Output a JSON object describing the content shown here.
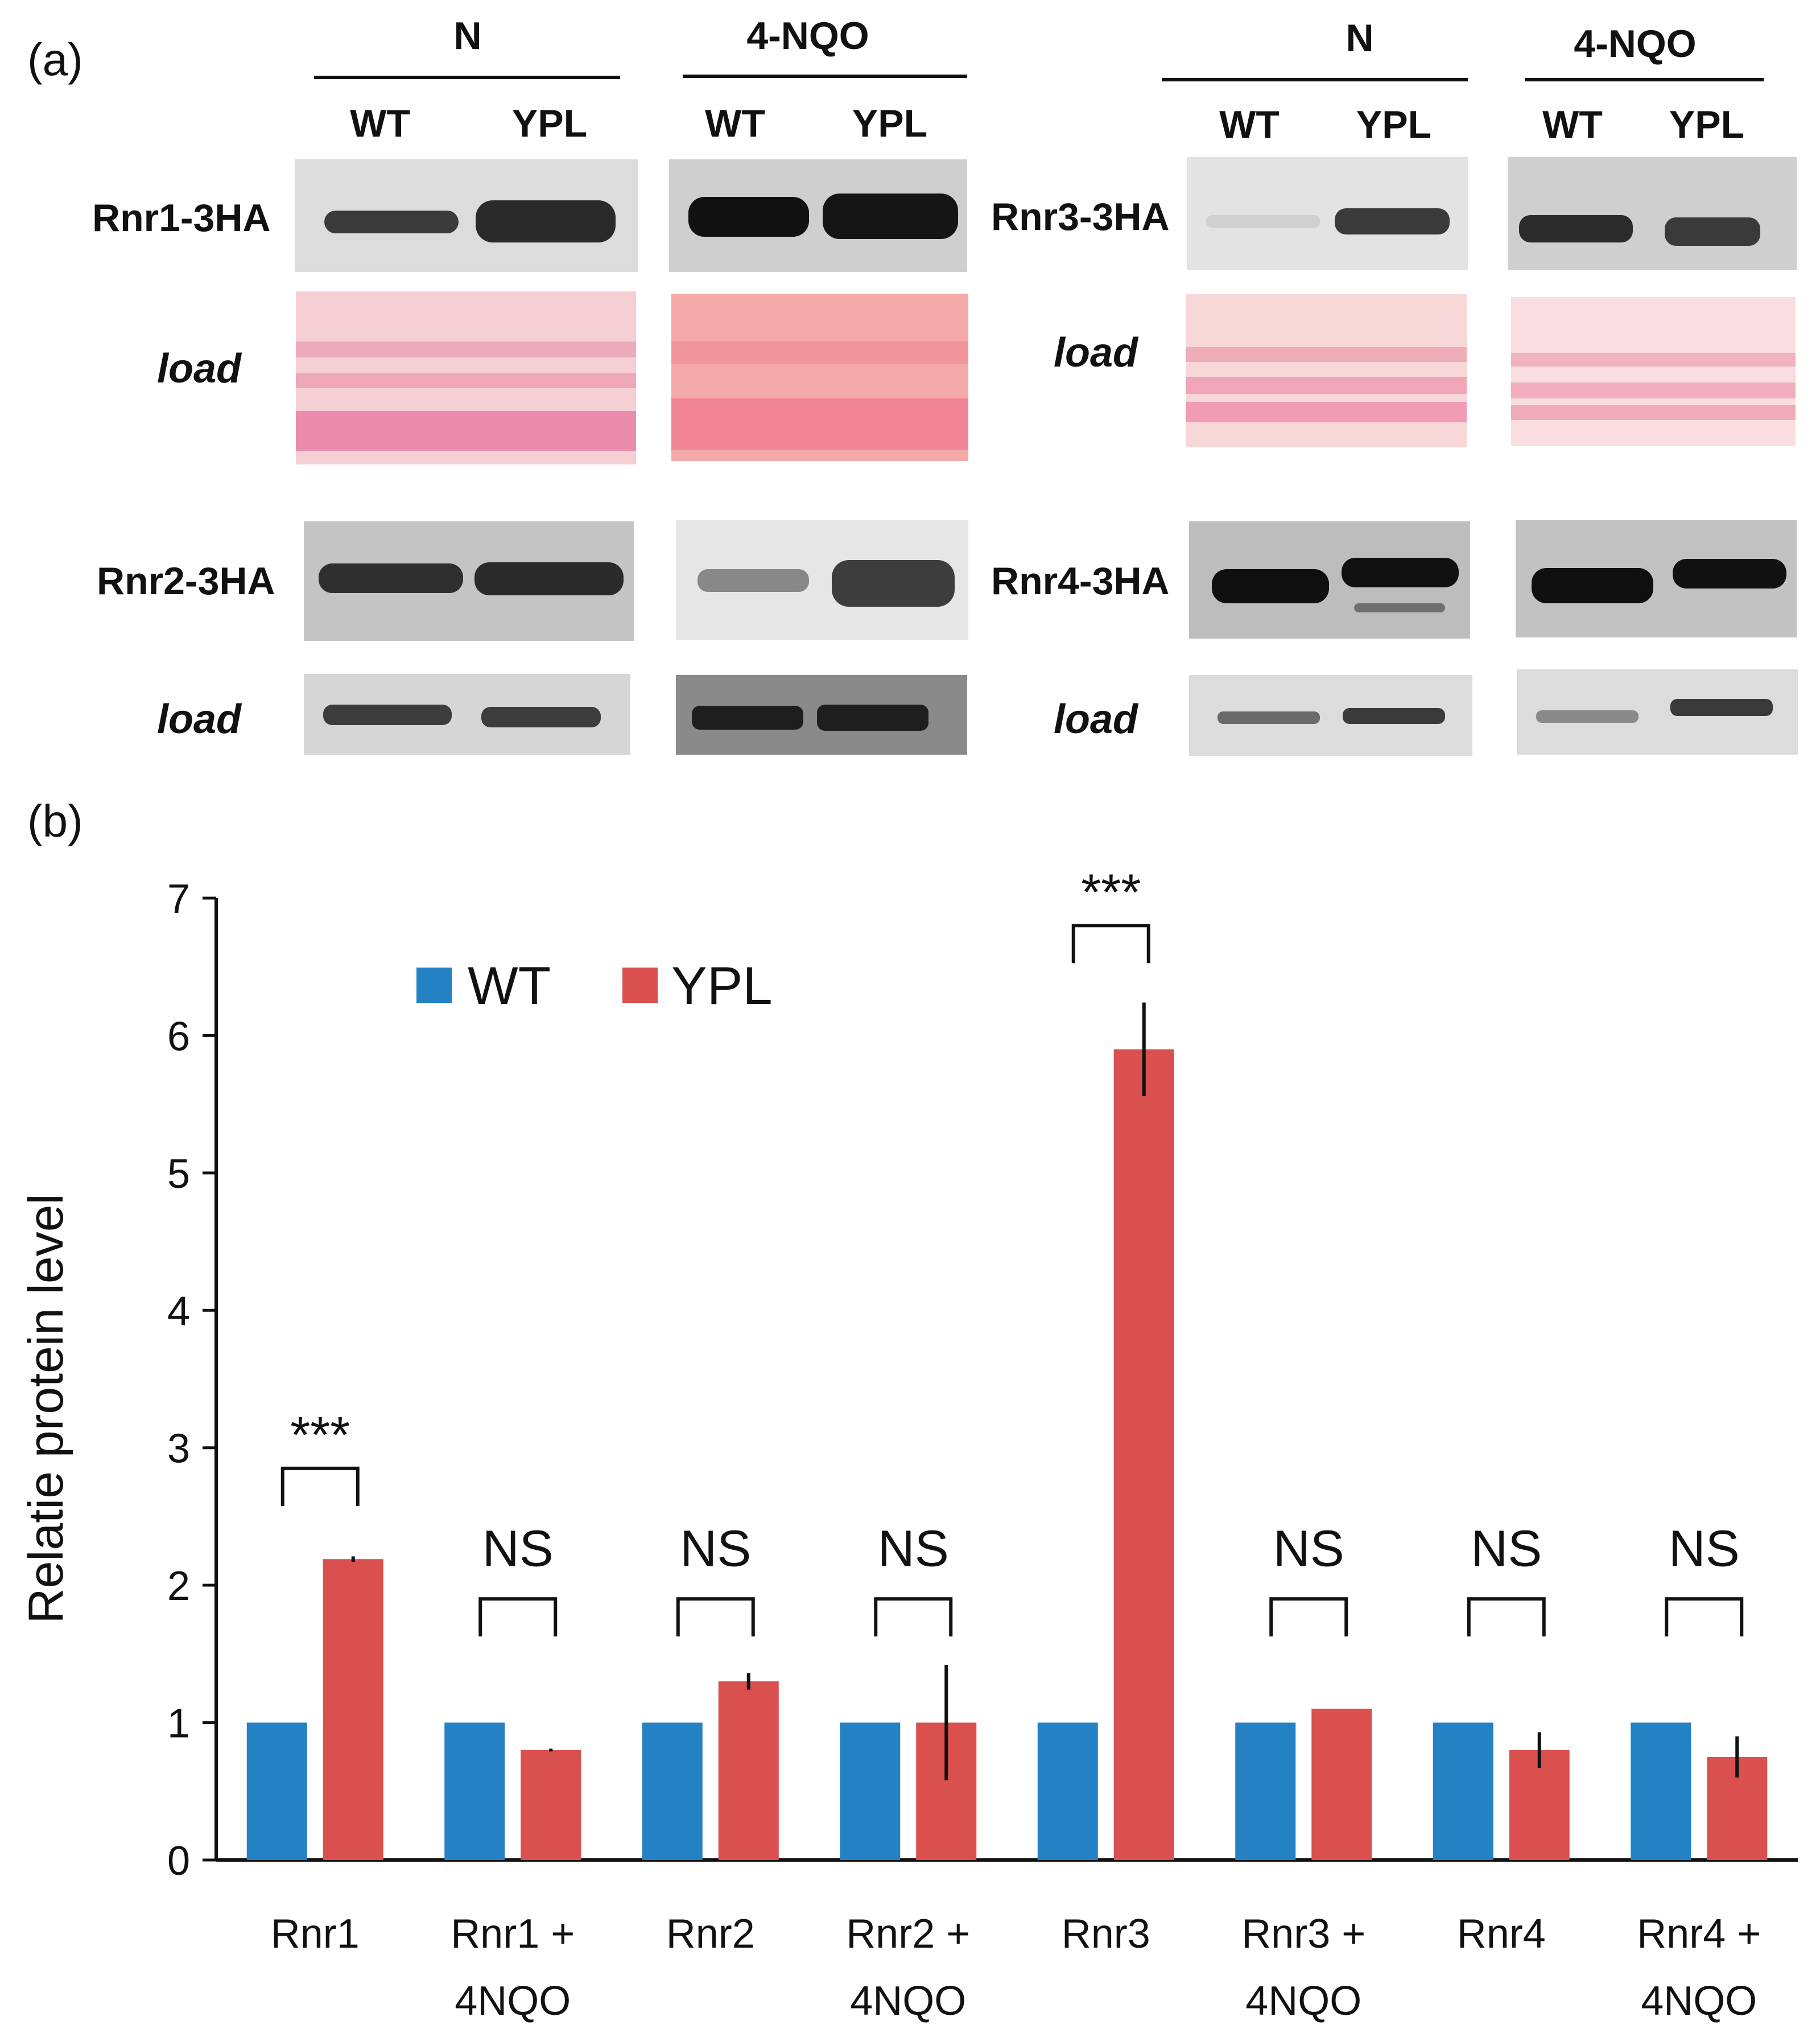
{
  "figure": {
    "panel_a_label": "(a)",
    "panel_b_label": "(b)"
  },
  "blots": {
    "left_conditions": [
      "N",
      "4-NQO"
    ],
    "right_conditions": [
      "N",
      "4-NQO"
    ],
    "strain_labels": [
      "WT",
      "YPL",
      "WT",
      "YPL"
    ],
    "proteins": [
      "Rnr1-3HA",
      "Rnr2-3HA",
      "Rnr3-3HA",
      "Rnr4-3HA"
    ],
    "load_label": "load"
  },
  "colors": {
    "wt": "#2381c4",
    "ypl": "#d9504e",
    "ponceau": "#f2a6b8"
  },
  "chart_data": {
    "type": "bar",
    "ylabel": "Relatie protein level",
    "xlabel": "",
    "ylim": [
      0,
      7
    ],
    "yticks": [
      0,
      1,
      2,
      3,
      4,
      5,
      6,
      7
    ],
    "categories": [
      [
        "Rnr1",
        ""
      ],
      [
        "Rnr1 +",
        "4NQO"
      ],
      [
        "Rnr2",
        ""
      ],
      [
        "Rnr2 +",
        "4NQO"
      ],
      [
        "Rnr3",
        ""
      ],
      [
        "Rnr3 +",
        "4NQO"
      ],
      [
        "Rnr4",
        ""
      ],
      [
        "Rnr4 +",
        "4NQO"
      ]
    ],
    "series": [
      {
        "name": "WT",
        "values": [
          1,
          1,
          1,
          1,
          1,
          1,
          1,
          1
        ],
        "errors": [
          0,
          0,
          0,
          0,
          0,
          0,
          0,
          0
        ]
      },
      {
        "name": "YPL",
        "values": [
          2.19,
          0.8,
          1.3,
          1.0,
          5.9,
          1.1,
          0.8,
          0.75
        ],
        "errors": [
          0.02,
          0.01,
          0.06,
          0.42,
          0.34,
          0.0,
          0.13,
          0.15
        ]
      }
    ],
    "significance": [
      "***",
      "NS",
      "NS",
      "NS",
      "***",
      "NS",
      "NS",
      "NS"
    ],
    "legend_position": "top-left"
  }
}
